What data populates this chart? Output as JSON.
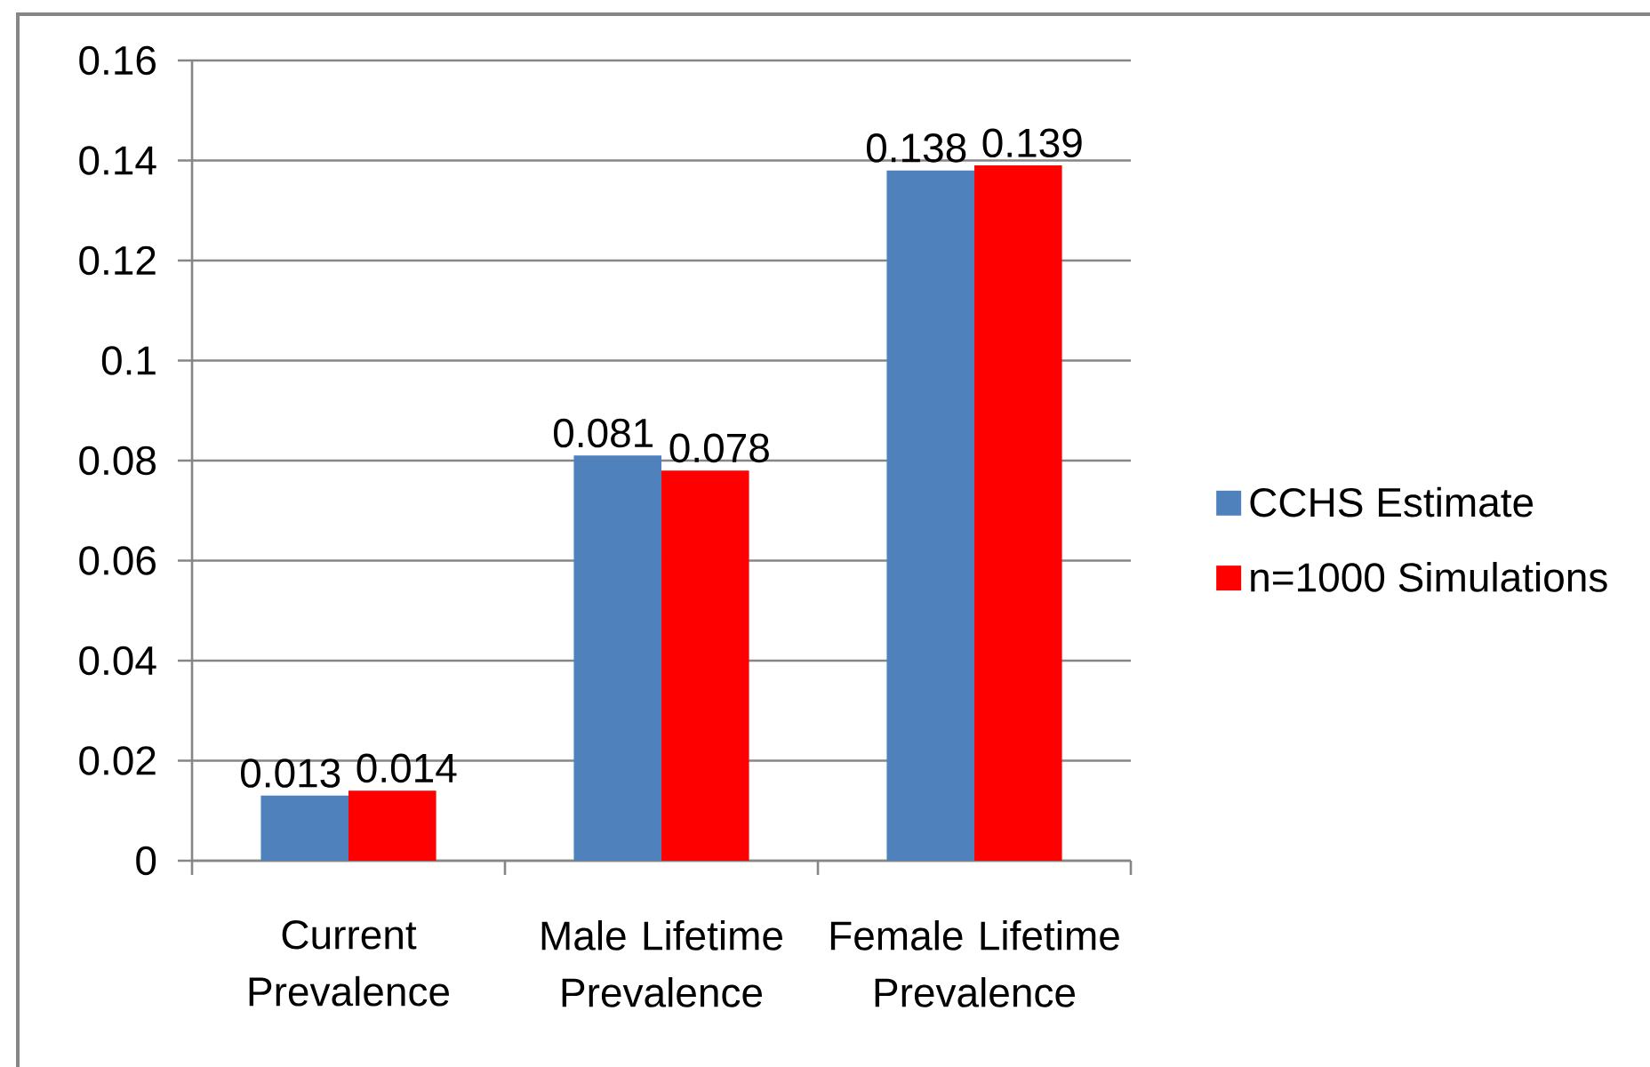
{
  "chart_data": {
    "type": "bar",
    "categories": [
      "Current Prevalence",
      "Male Lifetime Prevalence",
      "Female Lifetime Prevalence"
    ],
    "series": [
      {
        "name": "CCHS Estimate",
        "color": "#4f81bd",
        "values": [
          0.013,
          0.081,
          0.138
        ]
      },
      {
        "name": "n=1000 Simulations",
        "color": "#ff0000",
        "values": [
          0.014,
          0.078,
          0.139
        ]
      }
    ],
    "ylim": [
      0,
      0.16
    ],
    "yticks": [
      0,
      0.02,
      0.04,
      0.06,
      0.08,
      0.1,
      0.12,
      0.14,
      0.16
    ],
    "grid": "y",
    "legend": "right",
    "data_labels": true
  }
}
